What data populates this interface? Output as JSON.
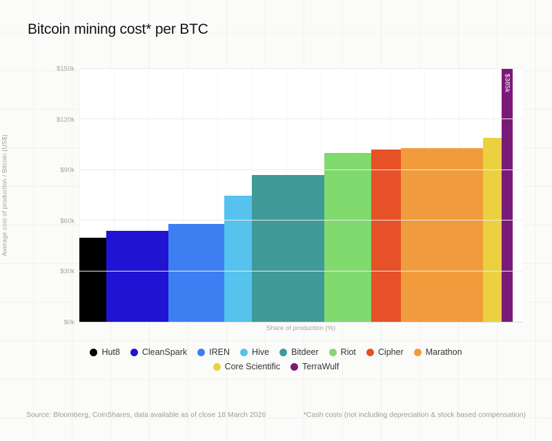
{
  "title": "Bitcoin mining cost* per BTC",
  "chart_data": {
    "type": "bar",
    "variable_width": true,
    "title": "Bitcoin mining cost* per BTC",
    "xlabel": "Share of production (%)",
    "ylabel": "Average cost of production / Bitcoin (US$)",
    "ylim": [
      0,
      150
    ],
    "ytick_labels": [
      "$0k",
      "$30k",
      "$60k",
      "$90k",
      "$120k",
      "$150k"
    ],
    "ytick_values": [
      0,
      30,
      60,
      90,
      120,
      150
    ],
    "grid": true,
    "legend_position": "bottom",
    "value_unit": "thousand US$ per BTC",
    "width_unit": "share of production (%)",
    "series": [
      {
        "name": "Hut8",
        "value": 50,
        "share_pct": 6.2,
        "color": "#000000"
      },
      {
        "name": "CleanSpark",
        "value": 54,
        "share_pct": 14.3,
        "color": "#2013d1"
      },
      {
        "name": "IREN",
        "value": 58,
        "share_pct": 13.0,
        "color": "#3d7ff2"
      },
      {
        "name": "Hive",
        "value": 75,
        "share_pct": 6.4,
        "color": "#56c2ee"
      },
      {
        "name": "Bitdeer",
        "value": 87,
        "share_pct": 16.7,
        "color": "#3f9a98"
      },
      {
        "name": "Riot",
        "value": 100,
        "share_pct": 10.8,
        "color": "#80da6d"
      },
      {
        "name": "Cipher",
        "value": 102,
        "share_pct": 6.9,
        "color": "#e65128"
      },
      {
        "name": "Marathon",
        "value": 103,
        "share_pct": 18.9,
        "color": "#f19c3c"
      },
      {
        "name": "Core Scientific",
        "value": 109,
        "share_pct": 4.3,
        "color": "#ebd140"
      },
      {
        "name": "TerraWulf",
        "value": 385,
        "share_pct": 2.5,
        "color": "#7a1a78",
        "clipped_at": 150,
        "annotation": "$385k"
      }
    ]
  },
  "footer": {
    "source": "Source: Bloomberg, CoinShares, data available as of close 18 March 2026",
    "note": "*Cash costs (not including depreciation & stock based compensation)"
  }
}
